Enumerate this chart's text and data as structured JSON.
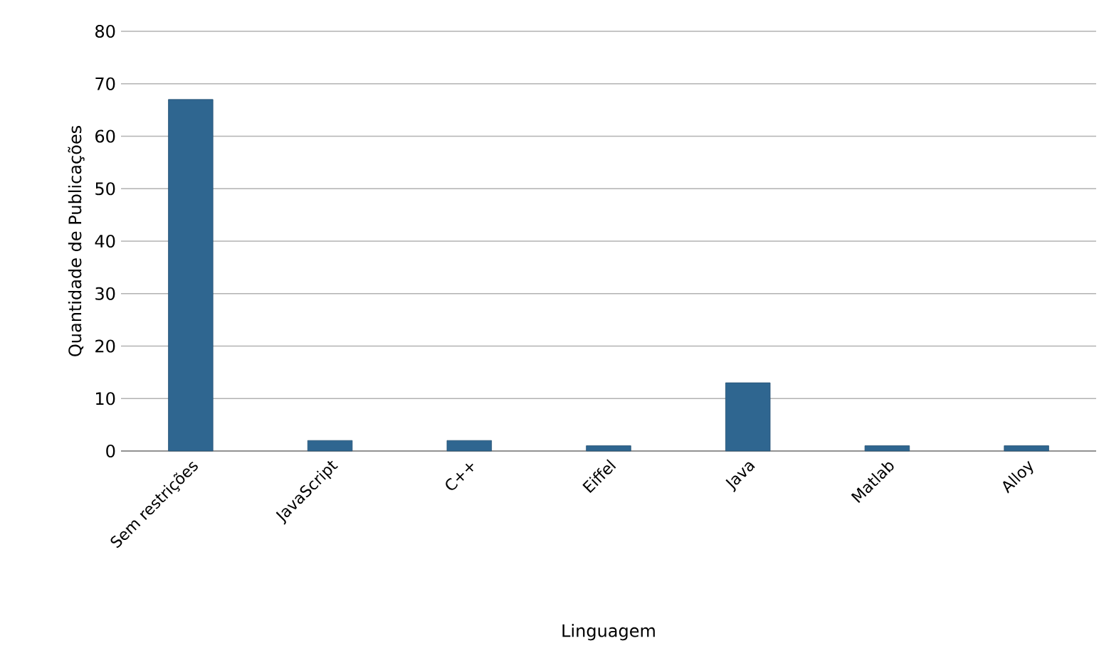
{
  "chart_data": {
    "type": "bar",
    "xlabel": "Linguagem",
    "ylabel": "Quantidade de Publicações",
    "categories": [
      "Sem restrições",
      "JavaScript",
      "C++",
      "Eiffel",
      "Java",
      "Matlab",
      "Alloy"
    ],
    "values": [
      67,
      2,
      2,
      1,
      13,
      1,
      1
    ],
    "color": "#2f6690",
    "ylim": [
      0,
      80
    ],
    "yticks": [
      0,
      10,
      20,
      30,
      40,
      50,
      60,
      70,
      80
    ],
    "grid": "y"
  }
}
